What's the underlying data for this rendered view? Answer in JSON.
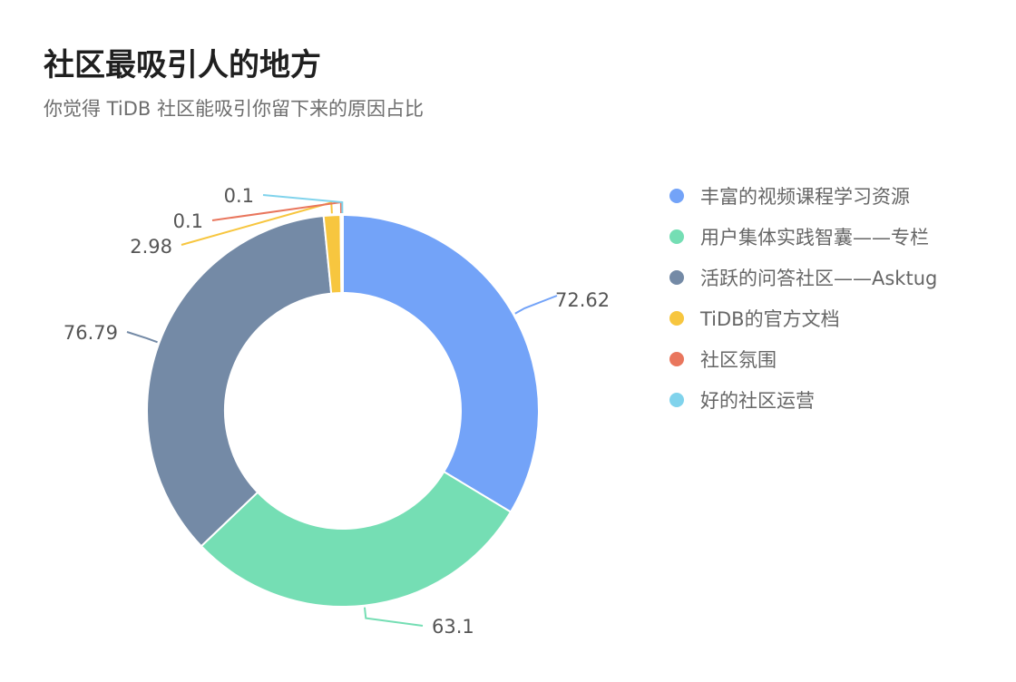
{
  "title": "社区最吸引人的地方",
  "subtitle": "你觉得 TiDB 社区能吸引你留下来的原因占比",
  "chart_data": {
    "type": "pie",
    "variant": "donut",
    "title": "社区最吸引人的地方",
    "subtitle": "你觉得 TiDB 社区能吸引你留下来的原因占比",
    "legend_position": "right",
    "slices": [
      {
        "label": "丰富的视频课程学习资源",
        "value": 72.62,
        "color": "#73a3f8"
      },
      {
        "label": "用户集体实践智囊——专栏",
        "value": 63.1,
        "color": "#75deb4"
      },
      {
        "label": "活跃的问答社区——Asktug",
        "value": 76.79,
        "color": "#748aa6"
      },
      {
        "label": "TiDB的官方文档",
        "value": 2.98,
        "color": "#f7c63f"
      },
      {
        "label": "社区氛围",
        "value": 0.1,
        "color": "#e9765d"
      },
      {
        "label": "好的社区运营",
        "value": 0.1,
        "color": "#80d3ec"
      }
    ]
  }
}
